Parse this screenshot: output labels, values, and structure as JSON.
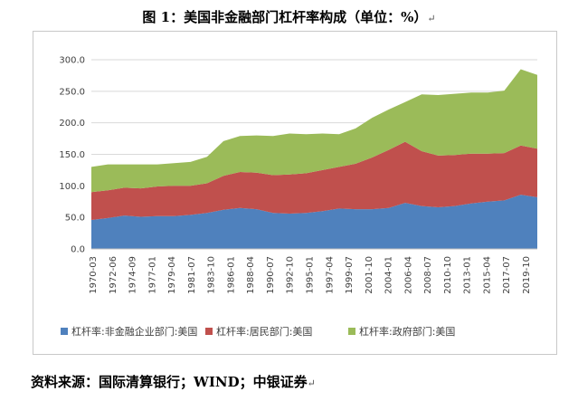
{
  "title": "图 1：美国非金融部门杠杆率构成（单位：%）",
  "return_mark": "↵",
  "source": "资料来源：国际清算银行；WIND；中银证券",
  "colors": {
    "corporate": "#4f81bd",
    "household": "#c0504d",
    "government": "#9bbb59",
    "grid": "#d9d9d9",
    "axis": "#bfbfbf"
  },
  "chart_data": {
    "type": "area",
    "stacked": true,
    "ylim": [
      0,
      300
    ],
    "yticks": [
      "0.0",
      "50.0",
      "100.0",
      "150.0",
      "200.0",
      "250.0",
      "300.0"
    ],
    "xtick_labels": [
      "1970-03",
      "1972-06",
      "1974-09",
      "1977-01",
      "1979-04",
      "1981-07",
      "1983-10",
      "1986-01",
      "1988-04",
      "1990-07",
      "1992-10",
      "1995-01",
      "1997-04",
      "1999-07",
      "2001-10",
      "2004-01",
      "2006-04",
      "2008-07",
      "2010-10",
      "2013-01",
      "2015-04",
      "2017-07",
      "2019-10"
    ],
    "x": [
      "1970",
      "1972",
      "1974",
      "1976",
      "1978",
      "1980",
      "1982",
      "1984",
      "1986",
      "1988",
      "1990",
      "1992",
      "1994",
      "1996",
      "1998",
      "2000",
      "2002",
      "2004",
      "2006",
      "2008",
      "2010",
      "2012",
      "2014",
      "2016",
      "2018",
      "2019Q4",
      "2020Q2",
      "2020Q4"
    ],
    "series": [
      {
        "name": "杠杆率:非金融企业部门:美国",
        "values": [
          46,
          49,
          53,
          51,
          52,
          52,
          54,
          57,
          62,
          65,
          63,
          57,
          56,
          57,
          60,
          64,
          63,
          63,
          65,
          73,
          68,
          66,
          68,
          72,
          75,
          77,
          86,
          82
        ]
      },
      {
        "name": "杠杆率:居民部门:美国",
        "values": [
          44,
          44,
          44,
          45,
          47,
          48,
          46,
          47,
          54,
          57,
          58,
          60,
          62,
          63,
          65,
          66,
          72,
          82,
          92,
          97,
          87,
          82,
          81,
          79,
          76,
          75,
          78,
          77
        ]
      },
      {
        "name": "杠杆率:政府部门:美国",
        "values": [
          40,
          41,
          37,
          38,
          35,
          36,
          38,
          42,
          55,
          57,
          59,
          62,
          65,
          62,
          58,
          52,
          56,
          63,
          64,
          63,
          90,
          96,
          97,
          97,
          97,
          99,
          121,
          117
        ]
      }
    ],
    "grid": "horizontal",
    "legend_position": "bottom"
  }
}
